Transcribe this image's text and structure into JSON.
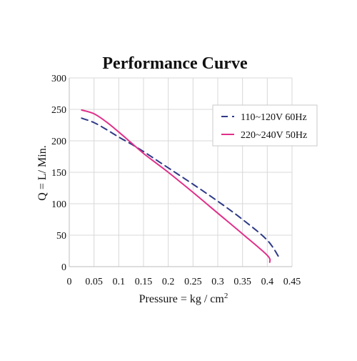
{
  "chart_data": {
    "type": "line",
    "title": "Performance Curve",
    "xlabel": "Pressure = kg / cm",
    "xlabel_superscript": "2",
    "ylabel": "Q = L/ Min.",
    "xlim": [
      0,
      0.45
    ],
    "ylim": [
      0,
      300
    ],
    "xticks": [
      0,
      0.05,
      0.1,
      0.15,
      0.2,
      0.25,
      0.3,
      0.35,
      0.4,
      0.45
    ],
    "xtick_labels": [
      "0",
      "0.05",
      "0.1",
      "0.15",
      "0.2",
      "0.25",
      "0.3",
      "0.35",
      "0.4",
      "0.45"
    ],
    "yticks": [
      0,
      50,
      100,
      150,
      200,
      250,
      300
    ],
    "ytick_labels": [
      "0",
      "50",
      "100",
      "150",
      "200",
      "250",
      "300"
    ],
    "grid": true,
    "legend_position": "top-right",
    "series": [
      {
        "name": "110~120V 60Hz",
        "color": "#2e3a87",
        "dash": "dashed",
        "x": [
          0.025,
          0.05,
          0.075,
          0.1,
          0.125,
          0.15,
          0.175,
          0.2,
          0.25,
          0.3,
          0.35,
          0.4,
          0.425
        ],
        "y": [
          236,
          229,
          218,
          206,
          195,
          183,
          170,
          157,
          131,
          104,
          75,
          42,
          13
        ]
      },
      {
        "name": "220~240V 50Hz",
        "color": "#e0308a",
        "dash": "solid",
        "x": [
          0.025,
          0.05,
          0.075,
          0.1,
          0.125,
          0.15,
          0.175,
          0.2,
          0.25,
          0.3,
          0.35,
          0.4,
          0.405
        ],
        "y": [
          249,
          243,
          230,
          214,
          197,
          180,
          165,
          150,
          118,
          85,
          52,
          18,
          7
        ]
      }
    ]
  }
}
